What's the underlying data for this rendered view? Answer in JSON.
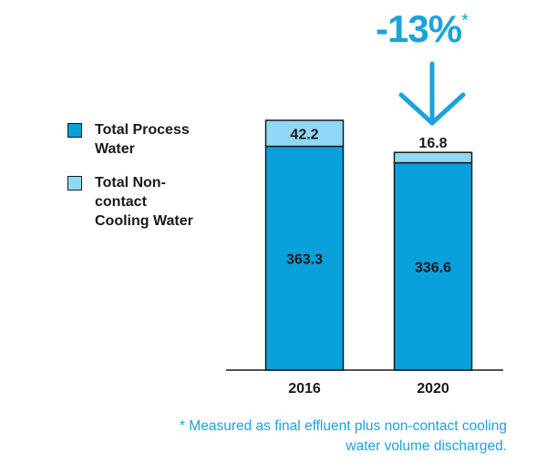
{
  "colors": {
    "process": "#0aa0dc",
    "noncontact": "#8fd9f7",
    "accent": "#1aa3dc",
    "outline": "#1a1a1a"
  },
  "legend": {
    "items": [
      {
        "label": "Total Process Water",
        "color": "#0aa0dc"
      },
      {
        "label": "Total Non-contact Cooling Water",
        "color": "#8fd9f7"
      }
    ]
  },
  "callout": {
    "value": "-13%",
    "marker": "*",
    "icon": "down-arrow-icon"
  },
  "footnote": {
    "line1": "* Measured as final effluent plus non-contact cooling",
    "line2": "water volume discharged."
  },
  "chart_data": {
    "type": "bar",
    "stacked": true,
    "categories": [
      "2016",
      "2020"
    ],
    "series": [
      {
        "name": "Total Process Water",
        "values": [
          363.3,
          336.6
        ],
        "color": "#0aa0dc"
      },
      {
        "name": "Total Non-contact Cooling Water",
        "values": [
          42.2,
          16.8
        ],
        "color": "#8fd9f7"
      }
    ],
    "data_labels": [
      [
        "363.3",
        "336.6"
      ],
      [
        "42.2",
        "16.8"
      ]
    ],
    "title": "",
    "xlabel": "",
    "ylabel": "",
    "ylim": [
      0,
      405.5
    ],
    "grid": false,
    "legend_position": "left"
  }
}
